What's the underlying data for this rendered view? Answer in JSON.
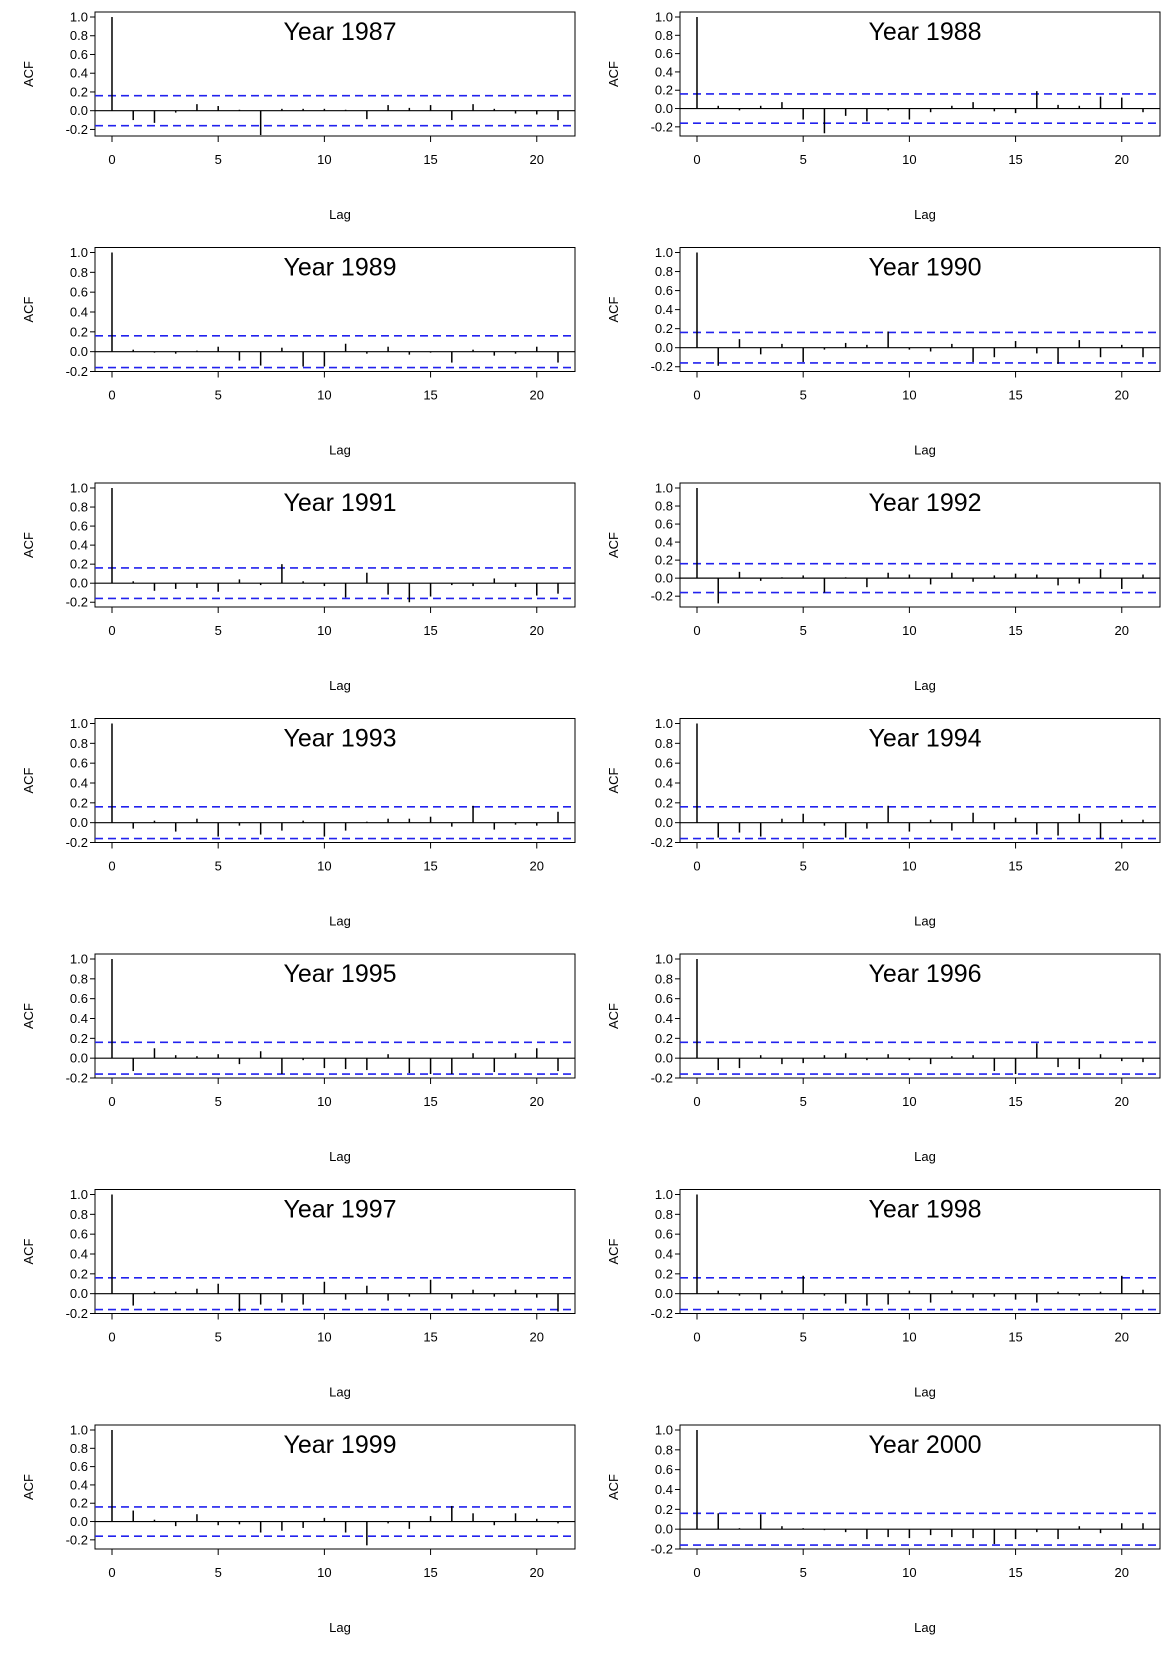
{
  "chart_data": [
    {
      "type": "bar",
      "title": "Year 1987",
      "xlabel": "Lag",
      "ylabel": "ACF",
      "xlim": [
        -0.8,
        21.8
      ],
      "ylim": [
        -0.27,
        1.05
      ],
      "conf_limit": 0.16,
      "yticks": [
        "-0.2",
        "0.0",
        "0.2",
        "0.4",
        "0.6",
        "0.8",
        "1.0"
      ],
      "xticks": [
        "0",
        "5",
        "10",
        "15",
        "20"
      ],
      "lags": [
        0,
        1,
        2,
        3,
        4,
        5,
        6,
        7,
        8,
        9,
        10,
        11,
        12,
        13,
        14,
        15,
        16,
        17,
        18,
        19,
        20,
        21
      ],
      "values": [
        1.0,
        -0.1,
        -0.13,
        -0.02,
        0.07,
        0.05,
        0.01,
        -0.26,
        0.02,
        0.02,
        0.02,
        0.01,
        -0.09,
        0.06,
        0.03,
        0.06,
        -0.1,
        0.07,
        0.02,
        -0.03,
        -0.04,
        -0.1
      ]
    },
    {
      "type": "bar",
      "title": "Year 1988",
      "xlabel": "Lag",
      "ylabel": "ACF",
      "xlim": [
        -0.8,
        21.8
      ],
      "ylim": [
        -0.3,
        1.05
      ],
      "conf_limit": 0.16,
      "yticks": [
        "-0.2",
        "0.0",
        "0.2",
        "0.4",
        "0.6",
        "0.8",
        "1.0"
      ],
      "xticks": [
        "0",
        "5",
        "10",
        "15",
        "20"
      ],
      "lags": [
        0,
        1,
        2,
        3,
        4,
        5,
        6,
        7,
        8,
        9,
        10,
        11,
        12,
        13,
        14,
        15,
        16,
        17,
        18,
        19,
        20,
        21
      ],
      "values": [
        1.0,
        0.03,
        -0.02,
        0.03,
        0.07,
        -0.12,
        -0.27,
        -0.08,
        -0.14,
        -0.02,
        -0.12,
        -0.04,
        0.03,
        0.07,
        -0.03,
        -0.05,
        0.19,
        0.04,
        0.03,
        0.13,
        0.12,
        -0.04
      ]
    },
    {
      "type": "bar",
      "title": "Year 1989",
      "xlabel": "Lag",
      "ylabel": "ACF",
      "xlim": [
        -0.8,
        21.8
      ],
      "ylim": [
        -0.2,
        1.05
      ],
      "conf_limit": 0.16,
      "yticks": [
        "-0.2",
        "0.0",
        "0.2",
        "0.4",
        "0.6",
        "0.8",
        "1.0"
      ],
      "xticks": [
        "0",
        "5",
        "10",
        "15",
        "20"
      ],
      "lags": [
        0,
        1,
        2,
        3,
        4,
        5,
        6,
        7,
        8,
        9,
        10,
        11,
        12,
        13,
        14,
        15,
        16,
        17,
        18,
        19,
        20,
        21
      ],
      "values": [
        1.0,
        0.02,
        -0.01,
        -0.02,
        0.01,
        0.05,
        -0.09,
        -0.14,
        0.04,
        -0.15,
        -0.15,
        0.08,
        -0.02,
        0.05,
        -0.03,
        -0.01,
        -0.11,
        0.02,
        -0.04,
        -0.02,
        0.05,
        -0.11
      ]
    },
    {
      "type": "bar",
      "title": "Year 1990",
      "xlabel": "Lag",
      "ylabel": "ACF",
      "xlim": [
        -0.8,
        21.8
      ],
      "ylim": [
        -0.25,
        1.05
      ],
      "conf_limit": 0.16,
      "yticks": [
        "-0.2",
        "0.0",
        "0.2",
        "0.4",
        "0.6",
        "0.8",
        "1.0"
      ],
      "xticks": [
        "0",
        "5",
        "10",
        "15",
        "20"
      ],
      "lags": [
        0,
        1,
        2,
        3,
        4,
        5,
        6,
        7,
        8,
        9,
        10,
        11,
        12,
        13,
        14,
        15,
        16,
        17,
        18,
        19,
        20,
        21
      ],
      "values": [
        1.0,
        -0.19,
        0.09,
        -0.07,
        0.04,
        -0.15,
        -0.02,
        0.05,
        0.03,
        0.17,
        -0.02,
        -0.04,
        0.04,
        -0.15,
        -0.1,
        0.07,
        -0.06,
        -0.17,
        0.08,
        -0.1,
        0.03,
        -0.1
      ]
    },
    {
      "type": "bar",
      "title": "Year 1991",
      "xlabel": "Lag",
      "ylabel": "ACF",
      "xlim": [
        -0.8,
        21.8
      ],
      "ylim": [
        -0.25,
        1.05
      ],
      "conf_limit": 0.16,
      "yticks": [
        "-0.2",
        "0.0",
        "0.2",
        "0.4",
        "0.6",
        "0.8",
        "1.0"
      ],
      "xticks": [
        "0",
        "5",
        "10",
        "15",
        "20"
      ],
      "lags": [
        0,
        1,
        2,
        3,
        4,
        5,
        6,
        7,
        8,
        9,
        10,
        11,
        12,
        13,
        14,
        15,
        16,
        17,
        18,
        19,
        20,
        21
      ],
      "values": [
        1.0,
        0.02,
        -0.08,
        -0.06,
        -0.05,
        -0.09,
        0.04,
        -0.02,
        0.2,
        0.02,
        -0.03,
        -0.15,
        0.11,
        -0.12,
        -0.2,
        -0.14,
        -0.02,
        -0.03,
        0.05,
        -0.04,
        -0.13,
        -0.11
      ]
    },
    {
      "type": "bar",
      "title": "Year 1992",
      "xlabel": "Lag",
      "ylabel": "ACF",
      "xlim": [
        -0.8,
        21.8
      ],
      "ylim": [
        -0.32,
        1.05
      ],
      "conf_limit": 0.16,
      "yticks": [
        "-0.2",
        "0.0",
        "0.2",
        "0.4",
        "0.6",
        "0.8",
        "1.0"
      ],
      "xticks": [
        "0",
        "5",
        "10",
        "15",
        "20"
      ],
      "lags": [
        0,
        1,
        2,
        3,
        4,
        5,
        6,
        7,
        8,
        9,
        10,
        11,
        12,
        13,
        14,
        15,
        16,
        17,
        18,
        19,
        20,
        21
      ],
      "values": [
        1.0,
        -0.28,
        0.07,
        -0.03,
        0.01,
        0.03,
        -0.16,
        0.01,
        -0.1,
        0.06,
        0.04,
        -0.07,
        0.06,
        -0.04,
        0.03,
        0.05,
        0.04,
        -0.08,
        -0.06,
        0.1,
        -0.12,
        0.04
      ]
    },
    {
      "type": "bar",
      "title": "Year 1993",
      "xlabel": "Lag",
      "ylabel": "ACF",
      "xlim": [
        -0.8,
        21.8
      ],
      "ylim": [
        -0.2,
        1.05
      ],
      "conf_limit": 0.16,
      "yticks": [
        "-0.2",
        "0.0",
        "0.2",
        "0.4",
        "0.6",
        "0.8",
        "1.0"
      ],
      "xticks": [
        "0",
        "5",
        "10",
        "15",
        "20"
      ],
      "lags": [
        0,
        1,
        2,
        3,
        4,
        5,
        6,
        7,
        8,
        9,
        10,
        11,
        12,
        13,
        14,
        15,
        16,
        17,
        18,
        19,
        20,
        21
      ],
      "values": [
        1.0,
        -0.06,
        0.02,
        -0.09,
        0.04,
        -0.14,
        -0.03,
        -0.12,
        -0.08,
        0.02,
        -0.14,
        -0.08,
        0.01,
        0.04,
        0.04,
        0.06,
        -0.04,
        0.17,
        -0.07,
        -0.02,
        -0.03,
        0.11
      ]
    },
    {
      "type": "bar",
      "title": "Year 1994",
      "xlabel": "Lag",
      "ylabel": "ACF",
      "xlim": [
        -0.8,
        21.8
      ],
      "ylim": [
        -0.2,
        1.05
      ],
      "conf_limit": 0.16,
      "yticks": [
        "-0.2",
        "0.0",
        "0.2",
        "0.4",
        "0.6",
        "0.8",
        "1.0"
      ],
      "xticks": [
        "0",
        "5",
        "10",
        "15",
        "20"
      ],
      "lags": [
        0,
        1,
        2,
        3,
        4,
        5,
        6,
        7,
        8,
        9,
        10,
        11,
        12,
        13,
        14,
        15,
        16,
        17,
        18,
        19,
        20,
        21
      ],
      "values": [
        1.0,
        -0.15,
        -0.1,
        -0.14,
        0.04,
        0.09,
        -0.03,
        -0.15,
        -0.06,
        0.17,
        -0.09,
        0.03,
        -0.08,
        0.1,
        -0.07,
        0.05,
        -0.12,
        -0.13,
        0.09,
        -0.16,
        0.03,
        0.03
      ]
    },
    {
      "type": "bar",
      "title": "Year 1995",
      "xlabel": "Lag",
      "ylabel": "ACF",
      "xlim": [
        -0.8,
        21.8
      ],
      "ylim": [
        -0.2,
        1.05
      ],
      "conf_limit": 0.16,
      "yticks": [
        "-0.2",
        "0.0",
        "0.2",
        "0.4",
        "0.6",
        "0.8",
        "1.0"
      ],
      "xticks": [
        "0",
        "5",
        "10",
        "15",
        "20"
      ],
      "lags": [
        0,
        1,
        2,
        3,
        4,
        5,
        6,
        7,
        8,
        9,
        10,
        11,
        12,
        13,
        14,
        15,
        16,
        17,
        18,
        19,
        20,
        21
      ],
      "values": [
        1.0,
        -0.13,
        0.1,
        0.03,
        0.02,
        0.04,
        -0.06,
        0.07,
        -0.16,
        -0.02,
        -0.1,
        -0.11,
        -0.12,
        0.04,
        -0.15,
        -0.16,
        -0.16,
        0.05,
        -0.14,
        0.05,
        0.1,
        -0.13
      ]
    },
    {
      "type": "bar",
      "title": "Year 1996",
      "xlabel": "Lag",
      "ylabel": "ACF",
      "xlim": [
        -0.8,
        21.8
      ],
      "ylim": [
        -0.2,
        1.05
      ],
      "conf_limit": 0.16,
      "yticks": [
        "-0.2",
        "0.0",
        "0.2",
        "0.4",
        "0.6",
        "0.8",
        "1.0"
      ],
      "xticks": [
        "0",
        "5",
        "10",
        "15",
        "20"
      ],
      "lags": [
        0,
        1,
        2,
        3,
        4,
        5,
        6,
        7,
        8,
        9,
        10,
        11,
        12,
        13,
        14,
        15,
        16,
        17,
        18,
        19,
        20,
        21
      ],
      "values": [
        1.0,
        -0.12,
        -0.1,
        0.03,
        -0.06,
        -0.05,
        0.03,
        0.05,
        -0.02,
        0.04,
        -0.02,
        -0.06,
        0.02,
        0.03,
        -0.13,
        -0.16,
        0.15,
        -0.09,
        -0.11,
        0.04,
        -0.03,
        -0.04
      ]
    },
    {
      "type": "bar",
      "title": "Year 1997",
      "xlabel": "Lag",
      "ylabel": "ACF",
      "xlim": [
        -0.8,
        21.8
      ],
      "ylim": [
        -0.2,
        1.05
      ],
      "conf_limit": 0.16,
      "yticks": [
        "-0.2",
        "0.0",
        "0.2",
        "0.4",
        "0.6",
        "0.8",
        "1.0"
      ],
      "xticks": [
        "0",
        "5",
        "10",
        "15",
        "20"
      ],
      "lags": [
        0,
        1,
        2,
        3,
        4,
        5,
        6,
        7,
        8,
        9,
        10,
        11,
        12,
        13,
        14,
        15,
        16,
        17,
        18,
        19,
        20,
        21
      ],
      "values": [
        1.0,
        -0.12,
        0.02,
        0.02,
        0.05,
        0.1,
        -0.18,
        -0.11,
        -0.09,
        -0.11,
        0.12,
        -0.06,
        0.08,
        -0.07,
        -0.03,
        0.14,
        -0.05,
        0.04,
        -0.03,
        0.04,
        -0.04,
        -0.18
      ]
    },
    {
      "type": "bar",
      "title": "Year 1998",
      "xlabel": "Lag",
      "ylabel": "ACF",
      "xlim": [
        -0.8,
        21.8
      ],
      "ylim": [
        -0.2,
        1.05
      ],
      "conf_limit": 0.16,
      "yticks": [
        "-0.2",
        "0.0",
        "0.2",
        "0.4",
        "0.6",
        "0.8",
        "1.0"
      ],
      "xticks": [
        "0",
        "5",
        "10",
        "15",
        "20"
      ],
      "lags": [
        0,
        1,
        2,
        3,
        4,
        5,
        6,
        7,
        8,
        9,
        10,
        11,
        12,
        13,
        14,
        15,
        16,
        17,
        18,
        19,
        20,
        21
      ],
      "values": [
        1.0,
        0.03,
        -0.02,
        -0.06,
        0.03,
        0.18,
        -0.02,
        -0.1,
        -0.12,
        -0.11,
        0.03,
        -0.09,
        0.03,
        -0.04,
        -0.03,
        -0.06,
        -0.09,
        0.02,
        -0.02,
        0.02,
        0.18,
        0.04
      ]
    },
    {
      "type": "bar",
      "title": "Year 1999",
      "xlabel": "Lag",
      "ylabel": "ACF",
      "xlim": [
        -0.8,
        21.8
      ],
      "ylim": [
        -0.3,
        1.05
      ],
      "conf_limit": 0.16,
      "yticks": [
        "-0.2",
        "0.0",
        "0.2",
        "0.4",
        "0.6",
        "0.8",
        "1.0"
      ],
      "xticks": [
        "0",
        "5",
        "10",
        "15",
        "20"
      ],
      "lags": [
        0,
        1,
        2,
        3,
        4,
        5,
        6,
        7,
        8,
        9,
        10,
        11,
        12,
        13,
        14,
        15,
        16,
        17,
        18,
        19,
        20,
        21
      ],
      "values": [
        1.0,
        0.12,
        0.02,
        -0.05,
        0.08,
        -0.04,
        -0.03,
        -0.12,
        -0.1,
        -0.07,
        0.04,
        -0.12,
        -0.26,
        -0.02,
        -0.08,
        0.06,
        0.17,
        0.09,
        -0.04,
        0.09,
        0.03,
        -0.02
      ]
    },
    {
      "type": "bar",
      "title": "Year 2000",
      "xlabel": "Lag",
      "ylabel": "ACF",
      "xlim": [
        -0.8,
        21.8
      ],
      "ylim": [
        -0.2,
        1.05
      ],
      "conf_limit": 0.16,
      "yticks": [
        "-0.2",
        "0.0",
        "0.2",
        "0.4",
        "0.6",
        "0.8",
        "1.0"
      ],
      "xticks": [
        "0",
        "5",
        "10",
        "15",
        "20"
      ],
      "lags": [
        0,
        1,
        2,
        3,
        4,
        5,
        6,
        7,
        8,
        9,
        10,
        11,
        12,
        13,
        14,
        15,
        16,
        17,
        18,
        19,
        20,
        21
      ],
      "values": [
        1.0,
        0.16,
        0.01,
        0.15,
        0.03,
        0.01,
        -0.01,
        -0.03,
        -0.1,
        -0.08,
        -0.09,
        -0.06,
        -0.08,
        -0.09,
        -0.15,
        -0.1,
        -0.03,
        -0.1,
        0.03,
        -0.04,
        0.06,
        0.06
      ]
    }
  ],
  "colors": {
    "conf_line": "#2222ee",
    "bars": "#000000",
    "axis": "#000000",
    "background": "#ffffff"
  }
}
